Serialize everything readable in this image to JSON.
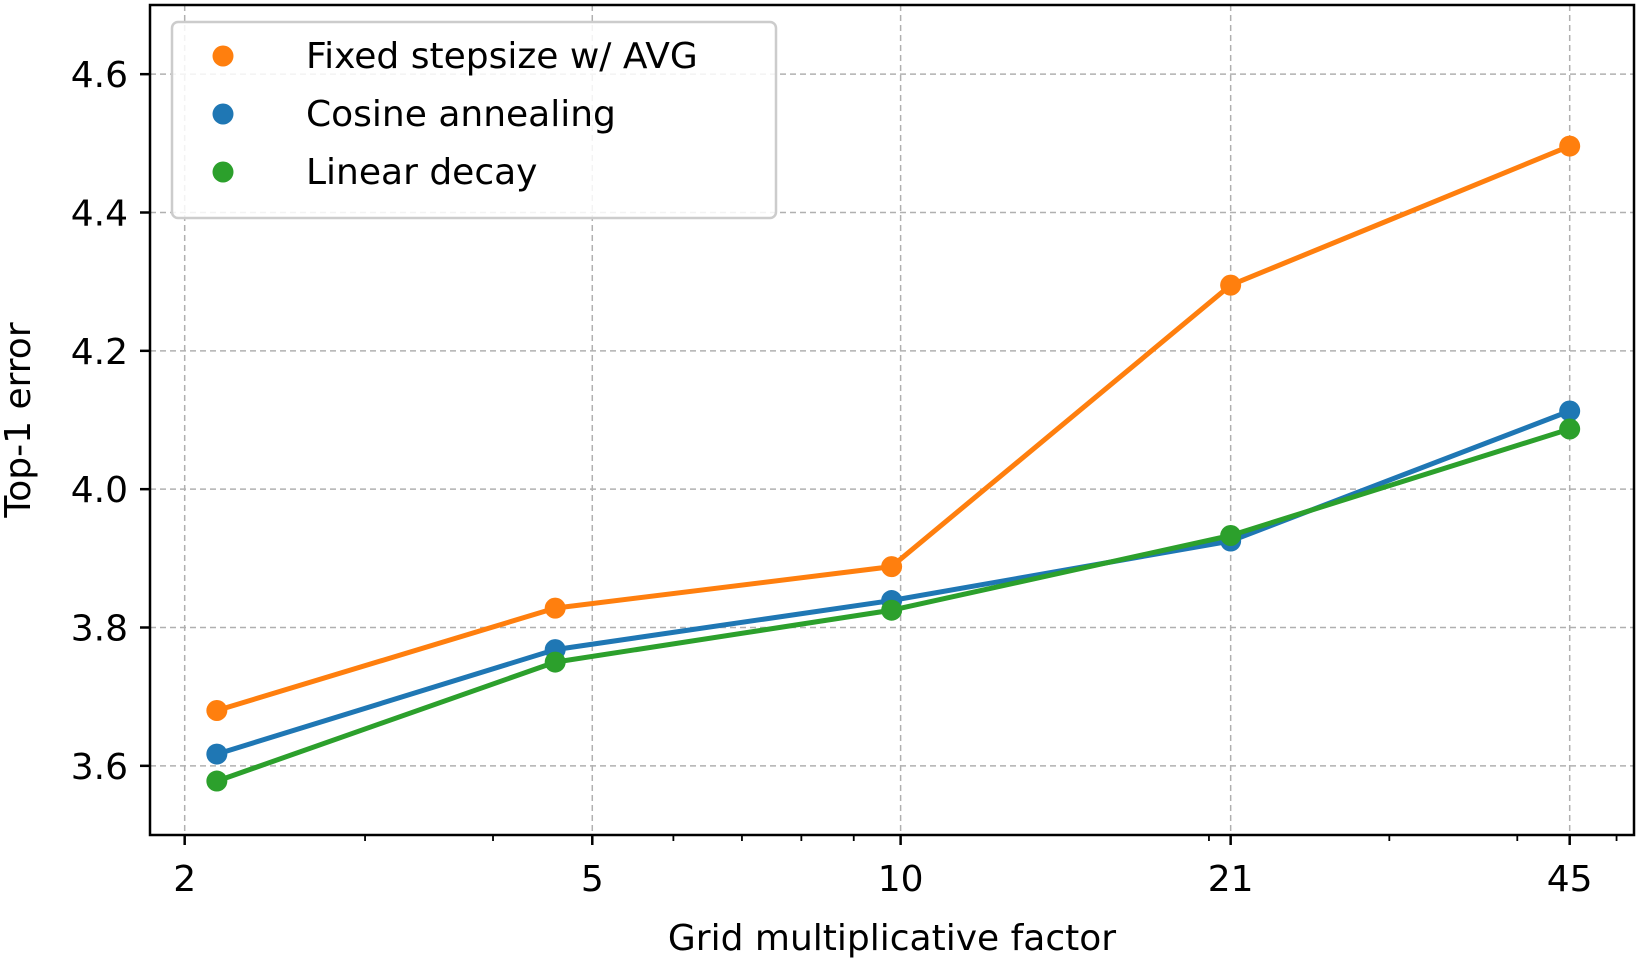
{
  "chart_data": {
    "type": "line",
    "title": "",
    "xlabel": "Grid multiplicative factor",
    "ylabel": "Top-1 error",
    "xscale": "log",
    "xlim": [
      1.85,
      52
    ],
    "ylim": [
      3.5,
      4.7
    ],
    "xticks": [
      2,
      5,
      10,
      21,
      45
    ],
    "xtick_labels": [
      "2",
      "5",
      "10",
      "21",
      "45"
    ],
    "yticks": [
      3.6,
      3.8,
      4.0,
      4.2,
      4.4,
      4.6
    ],
    "ytick_labels": [
      "3.6",
      "3.8",
      "4.0",
      "4.2",
      "4.4",
      "4.6"
    ],
    "grid": true,
    "legend_position": "top-left",
    "series": [
      {
        "name": "Fixed stepsize w/ AVG",
        "color": "#ff7f0e",
        "x": [
          2.15,
          4.6,
          9.8,
          21,
          45
        ],
        "values": [
          3.68,
          3.828,
          3.888,
          4.295,
          4.496
        ]
      },
      {
        "name": "Cosine annealing",
        "color": "#1f77b4",
        "x": [
          2.15,
          4.6,
          9.8,
          21,
          45
        ],
        "values": [
          3.617,
          3.768,
          3.839,
          3.925,
          4.113
        ]
      },
      {
        "name": "Linear decay",
        "color": "#2ca02c",
        "x": [
          2.15,
          4.6,
          9.8,
          21,
          45
        ],
        "values": [
          3.578,
          3.75,
          3.825,
          3.933,
          4.087
        ]
      }
    ]
  }
}
